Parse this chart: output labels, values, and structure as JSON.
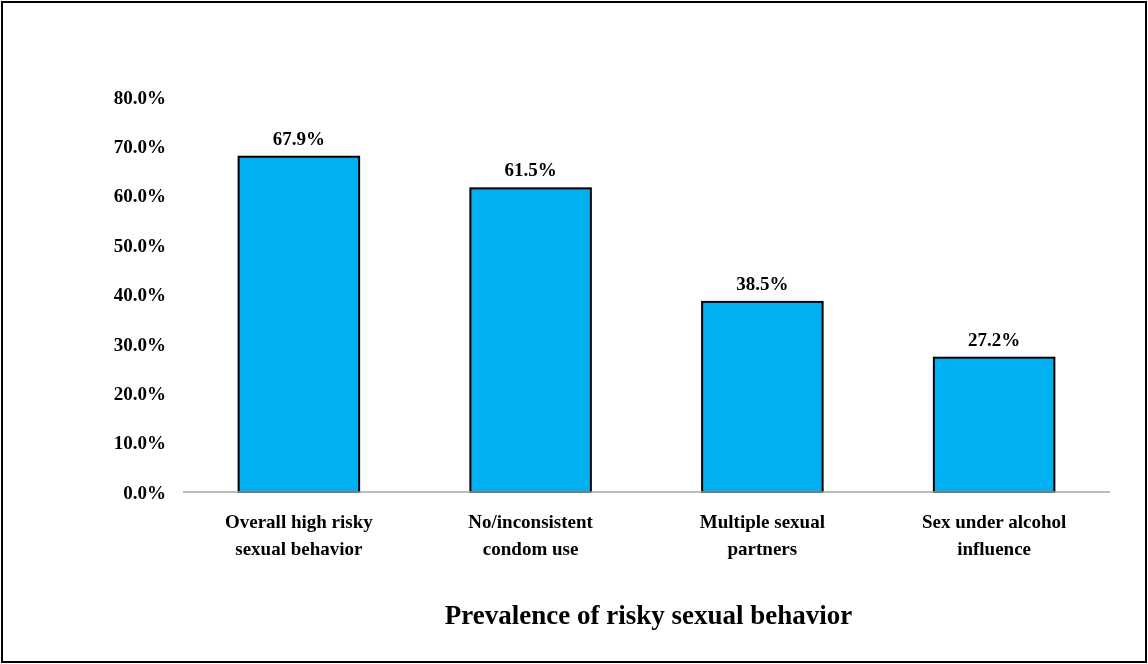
{
  "chart_data": {
    "type": "bar",
    "xlabel": "Prevalence of risky sexual behavior",
    "categories": [
      "Overall high risky sexual behavior",
      "No/inconsistent condom use",
      "Multiple sexual partners",
      "Sex under alcohol influence"
    ],
    "values": [
      67.9,
      61.5,
      38.5,
      27.2
    ],
    "value_labels": [
      "67.9%",
      "61.5%",
      "38.5%",
      "27.2%"
    ],
    "color": "#00b0f0",
    "ylim": [
      0,
      80
    ],
    "yticks": [
      {
        "value": 0,
        "label": "0.0%"
      },
      {
        "value": 10,
        "label": "10.0%"
      },
      {
        "value": 20,
        "label": "20.0%"
      },
      {
        "value": 30,
        "label": "30.0%"
      },
      {
        "value": 40,
        "label": "40.0%"
      },
      {
        "value": 50,
        "label": "50.0%"
      },
      {
        "value": 60,
        "label": "60.0%"
      },
      {
        "value": 70,
        "label": "70.0%"
      },
      {
        "value": 80,
        "label": "80.0%"
      }
    ],
    "grid": false
  }
}
